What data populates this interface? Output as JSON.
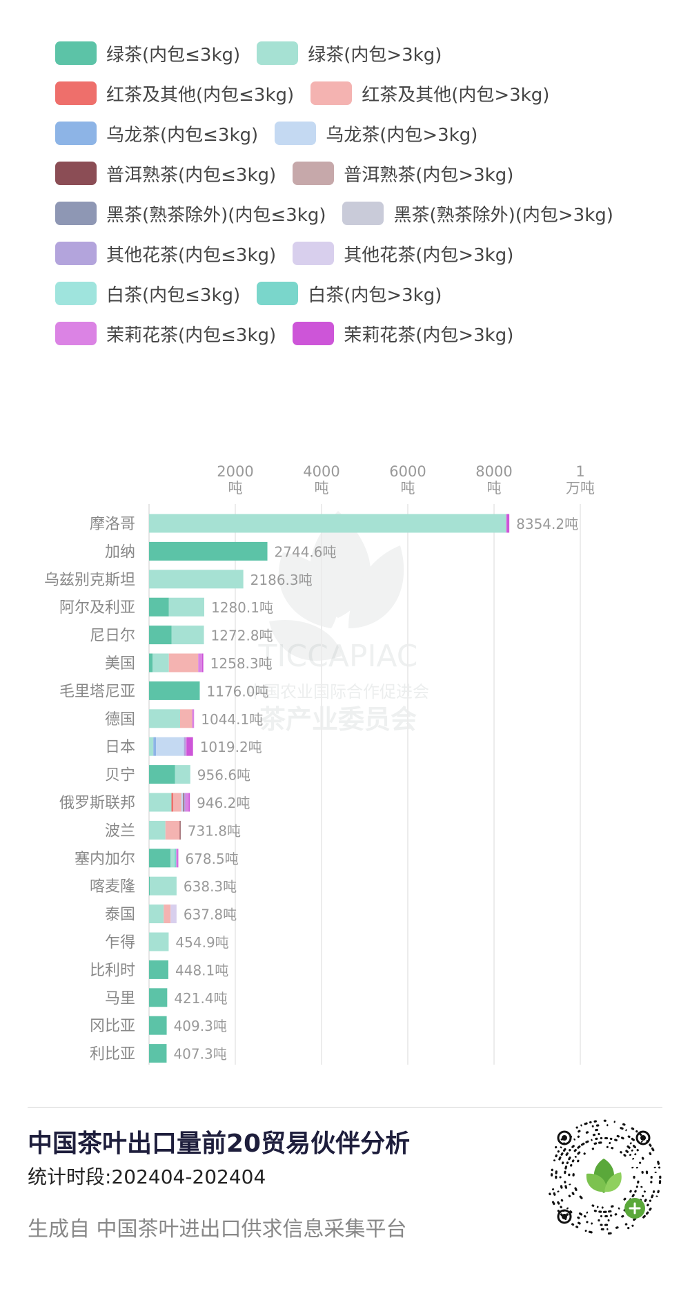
{
  "legend": [
    {
      "name": "绿茶(内包≤3kg)",
      "color": "#5cc3a7"
    },
    {
      "name": "绿茶(内包>3kg)",
      "color": "#a6e1d3"
    },
    {
      "name": "红茶及其他(内包≤3kg)",
      "color": "#ee6f6b"
    },
    {
      "name": "红茶及其他(内包>3kg)",
      "color": "#f4b3b1"
    },
    {
      "name": "乌龙茶(内包≤3kg)",
      "color": "#8db4e6"
    },
    {
      "name": "乌龙茶(内包>3kg)",
      "color": "#c4d9f2"
    },
    {
      "name": "普洱熟茶(内包≤3kg)",
      "color": "#8b4d55"
    },
    {
      "name": "普洱熟茶(内包>3kg)",
      "color": "#c6a8aa"
    },
    {
      "name": "黑茶(熟茶除外)(内包≤3kg)",
      "color": "#8e97b4"
    },
    {
      "name": "黑茶(熟茶除外)(内包>3kg)",
      "color": "#c9cbd9"
    },
    {
      "name": "其他花茶(内包≤3kg)",
      "color": "#b3a4dc"
    },
    {
      "name": "其他花茶(内包>3kg)",
      "color": "#d8cfed"
    },
    {
      "name": "白茶(内包≤3kg)",
      "color": "#9fe4dd"
    },
    {
      "name": "白茶(内包>3kg)",
      "color": "#7ad6cb"
    },
    {
      "name": "茉莉花茶(内包≤3kg)",
      "color": "#db83e4"
    },
    {
      "name": "茉莉花茶(内包>3kg)",
      "color": "#cd55d8"
    }
  ],
  "chart_data": {
    "type": "bar",
    "orientation": "horizontal",
    "stacked": true,
    "xlim": [
      0,
      10000
    ],
    "x_ticks": [
      {
        "value": 2000,
        "line1": "2000",
        "line2": "吨"
      },
      {
        "value": 4000,
        "line1": "4000",
        "line2": "吨"
      },
      {
        "value": 6000,
        "line1": "6000",
        "line2": "吨"
      },
      {
        "value": 8000,
        "line1": "8000",
        "line2": "吨"
      },
      {
        "value": 10000,
        "line1": "1",
        "line2": "万吨"
      }
    ],
    "grid": true,
    "categories": [
      "摩洛哥",
      "加纳",
      "乌兹别克斯坦",
      "阿尔及利亚",
      "尼日尔",
      "美国",
      "毛里塔尼亚",
      "德国",
      "日本",
      "贝宁",
      "俄罗斯联邦",
      "波兰",
      "塞内加尔",
      "喀麦隆",
      "泰国",
      "乍得",
      "比利时",
      "马里",
      "冈比亚",
      "利比亚"
    ],
    "totals": [
      "8354.2吨",
      "2744.6吨",
      "2186.3吨",
      "1280.1吨",
      "1272.8吨",
      "1258.3吨",
      "1176.0吨",
      "1044.1吨",
      "1019.2吨",
      "956.6吨",
      "946.2吨",
      "731.8吨",
      "678.5吨",
      "638.3吨",
      "637.8吨",
      "454.9吨",
      "448.1吨",
      "421.4吨",
      "409.3吨",
      "407.3吨"
    ],
    "series": [
      {
        "name": "绿茶(内包≤3kg)",
        "values": [
          0,
          2744.6,
          0,
          460,
          520,
          80,
          1176.0,
          0,
          0,
          600,
          0,
          0,
          500,
          20,
          0,
          0,
          448.1,
          421.4,
          409.3,
          407.3
        ]
      },
      {
        "name": "绿茶(内包>3kg)",
        "values": [
          8280,
          0,
          2186.3,
          820.1,
          752.8,
          380,
          0,
          720,
          100,
          356.6,
          520,
          380,
          90,
          618.3,
          340,
          454.9,
          0,
          0,
          0,
          0
        ]
      },
      {
        "name": "红茶及其他(内包≤3kg)",
        "values": [
          0,
          0,
          0,
          0,
          0,
          0,
          0,
          0,
          0,
          0,
          40,
          0,
          0,
          0,
          0,
          0,
          0,
          0,
          0,
          0
        ]
      },
      {
        "name": "红茶及其他(内包>3kg)",
        "values": [
          0,
          0,
          0,
          0,
          0,
          680,
          0,
          280,
          0,
          0,
          190,
          331.8,
          0,
          0,
          160,
          0,
          0,
          0,
          0,
          0
        ]
      },
      {
        "name": "乌龙茶(内包≤3kg)",
        "values": [
          0,
          0,
          0,
          0,
          0,
          0,
          0,
          0,
          60,
          0,
          0,
          0,
          0,
          0,
          0,
          0,
          0,
          0,
          0,
          0
        ]
      },
      {
        "name": "乌龙茶(内包>3kg)",
        "values": [
          0,
          0,
          0,
          0,
          0,
          0,
          0,
          0,
          650,
          0,
          40,
          0,
          0,
          0,
          0,
          0,
          0,
          0,
          0,
          0
        ]
      },
      {
        "name": "普洱熟茶(内包≤3kg)",
        "values": [
          0,
          0,
          0,
          0,
          0,
          0,
          0,
          0,
          0,
          0,
          20,
          20,
          0,
          0,
          0,
          0,
          0,
          0,
          0,
          0
        ]
      },
      {
        "name": "普洱熟茶(内包>3kg)",
        "values": [
          0,
          0,
          0,
          0,
          0,
          0,
          0,
          0,
          0,
          0,
          0,
          0,
          0,
          0,
          0,
          0,
          0,
          0,
          0,
          0
        ]
      },
      {
        "name": "黑茶(熟茶除外)(内包≤3kg)",
        "values": [
          0,
          0,
          0,
          0,
          0,
          0,
          0,
          0,
          0,
          0,
          0,
          0,
          0,
          0,
          0,
          0,
          0,
          0,
          0,
          0
        ]
      },
      {
        "name": "黑茶(熟茶除外)(内包>3kg)",
        "values": [
          0,
          0,
          0,
          0,
          0,
          0,
          0,
          0,
          0,
          0,
          0,
          0,
          0,
          0,
          0,
          0,
          0,
          0,
          0,
          0
        ]
      },
      {
        "name": "其他花茶(内包≤3kg)",
        "values": [
          0,
          0,
          0,
          0,
          0,
          0,
          0,
          0,
          40,
          0,
          30,
          0,
          0,
          0,
          0,
          0,
          0,
          0,
          0,
          0
        ]
      },
      {
        "name": "其他花茶(内包>3kg)",
        "values": [
          0,
          0,
          0,
          0,
          0,
          0,
          0,
          0,
          0,
          0,
          0,
          0,
          0,
          0,
          137.8,
          0,
          0,
          0,
          0,
          0
        ]
      },
      {
        "name": "白茶(内包≤3kg)",
        "values": [
          0,
          0,
          0,
          0,
          0,
          0,
          0,
          0,
          0,
          0,
          0,
          0,
          0,
          0,
          0,
          0,
          0,
          0,
          0,
          0
        ]
      },
      {
        "name": "白茶(内包>3kg)",
        "values": [
          0,
          0,
          0,
          0,
          0,
          0,
          0,
          0,
          0,
          0,
          0,
          0,
          40,
          0,
          0,
          0,
          0,
          0,
          0,
          0
        ]
      },
      {
        "name": "茉莉花茶(内包≤3kg)",
        "values": [
          14.2,
          0,
          0,
          0,
          0,
          88.3,
          0,
          44.1,
          19.2,
          0,
          76.2,
          0,
          28.5,
          0,
          0,
          0,
          0,
          0,
          0,
          0
        ]
      },
      {
        "name": "茉莉花茶(内包>3kg)",
        "values": [
          60,
          0,
          0,
          0,
          0,
          30,
          0,
          0,
          150,
          0,
          30,
          0,
          20,
          0,
          0,
          0,
          0,
          0,
          0,
          0
        ]
      }
    ]
  },
  "watermark": {
    "brand": "TICCAPIAC",
    "org": "中国农业国际合作促进会",
    "dept": "茶产业委员会"
  },
  "footer": {
    "title": "中国茶叶出口量前20贸易伙伴分析",
    "period": "统计时段:202404-202404",
    "source": "生成自 中国茶叶进出口供求信息采集平台"
  }
}
